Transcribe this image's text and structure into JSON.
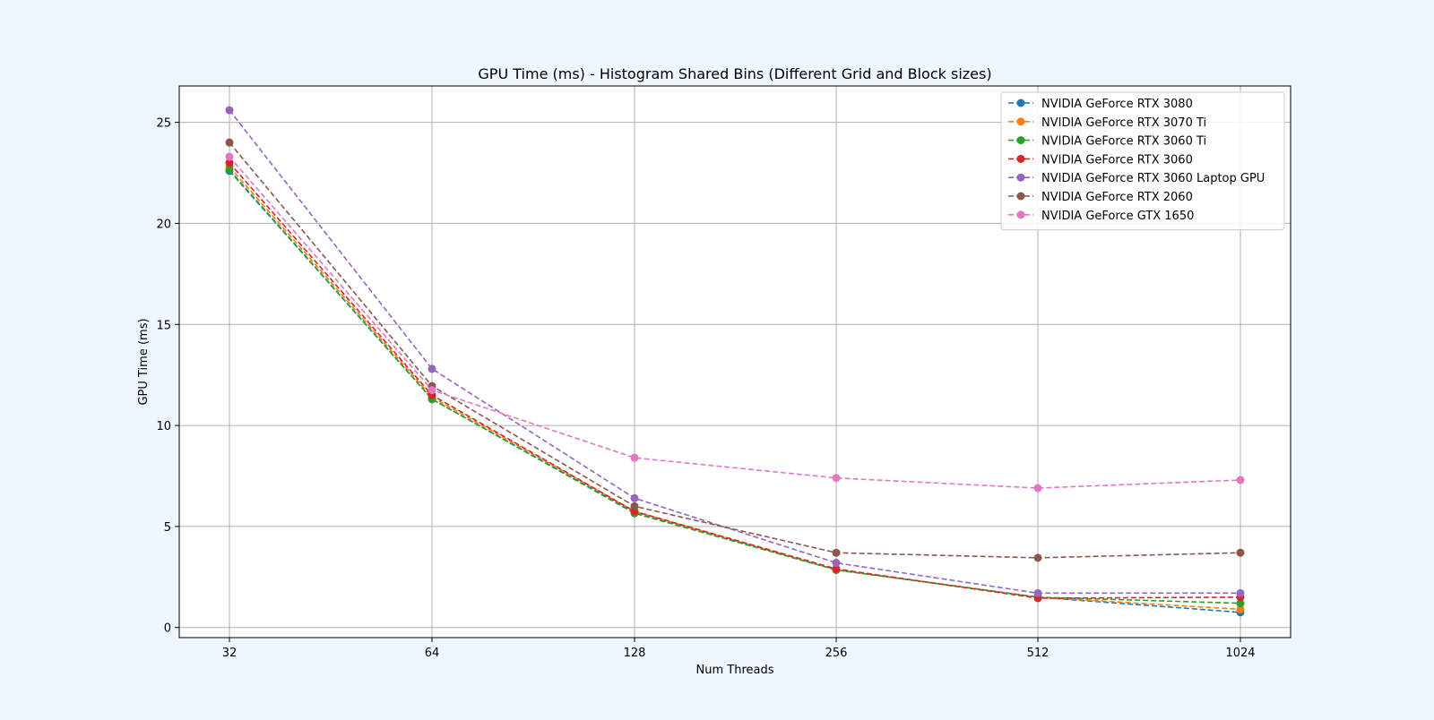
{
  "figure": {
    "background": "#eef6fe"
  },
  "chart_data": {
    "type": "line",
    "title": "GPU Time (ms) - Histogram Shared Bins (Different Grid and Block sizes)",
    "xlabel": "Num Threads",
    "ylabel": "GPU Time (ms)",
    "x": [
      32,
      64,
      128,
      256,
      512,
      1024
    ],
    "x_tick_labels": [
      "32",
      "64",
      "128",
      "256",
      "512",
      "1024"
    ],
    "y_ticks": [
      0,
      5,
      10,
      15,
      20,
      25
    ],
    "y_tick_labels": [
      "0",
      "5",
      "10",
      "15",
      "20",
      "25"
    ],
    "ylim": [
      -0.5,
      26.8
    ],
    "x_scale": "log2",
    "grid": true,
    "line_style": "dashed",
    "marker": "circle",
    "legend_position": "top-right",
    "series": [
      {
        "name": "NVIDIA GeForce RTX 3080",
        "color": "#1f77b4",
        "values": [
          22.6,
          11.3,
          5.7,
          2.85,
          1.5,
          0.75
        ]
      },
      {
        "name": "NVIDIA GeForce RTX 3070 Ti",
        "color": "#ff7f0e",
        "values": [
          22.8,
          11.4,
          5.75,
          2.85,
          1.5,
          0.9
        ]
      },
      {
        "name": "NVIDIA GeForce RTX 3060 Ti",
        "color": "#2ca02c",
        "values": [
          22.65,
          11.3,
          5.65,
          2.85,
          1.5,
          1.2
        ]
      },
      {
        "name": "NVIDIA GeForce RTX 3060",
        "color": "#d62728",
        "values": [
          23.0,
          11.5,
          5.75,
          2.9,
          1.45,
          1.5
        ]
      },
      {
        "name": "NVIDIA GeForce RTX 3060 Laptop GPU",
        "color": "#9467bd",
        "values": [
          25.6,
          12.8,
          6.4,
          3.2,
          1.7,
          1.7
        ]
      },
      {
        "name": "NVIDIA GeForce RTX 2060",
        "color": "#8c564b",
        "values": [
          24.0,
          11.95,
          6.0,
          3.7,
          3.45,
          3.7
        ]
      },
      {
        "name": "NVIDIA GeForce GTX 1650",
        "color": "#e377c2",
        "values": [
          23.3,
          11.75,
          8.4,
          7.4,
          6.9,
          7.3
        ]
      }
    ]
  }
}
